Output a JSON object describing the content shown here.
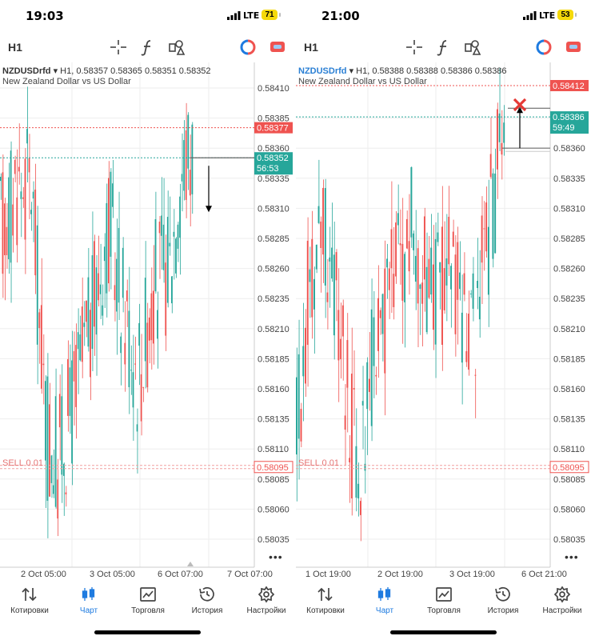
{
  "colors": {
    "bull": "#26a69a",
    "bear": "#ef5350",
    "accent": "#1e7be0",
    "grid": "#eeeeee"
  },
  "panels": [
    {
      "status": {
        "time": "19:03",
        "network": "LTE",
        "battery": "71"
      },
      "toolbar": {
        "timeframe": "H1",
        "icons": [
          "crosshair-icon",
          "indicators-icon",
          "objects-icon",
          "trading-icon",
          "chat-icon"
        ]
      },
      "chart": {
        "symbol": "NZDUSDrfd",
        "ohlc": "H1, 0.58357 0.58365 0.58351 0.58352",
        "description": "New Zealand Dollar vs US Dollar",
        "price_ticks": [
          "0.58410",
          "0.58385",
          "0.58360",
          "0.58335",
          "0.58310",
          "0.58285",
          "0.58260",
          "0.58235",
          "0.58210",
          "0.58185",
          "0.58160",
          "0.58135",
          "0.58110",
          "0.58085",
          "0.58060",
          "0.58035"
        ],
        "time_ticks": [
          "2 Oct 05:00",
          "3 Oct 05:00",
          "6 Oct 07:00",
          "7 Oct 07:00"
        ],
        "red_level": "0.58377",
        "bid_price": "0.58352",
        "countdown": "56:53",
        "sell_label": "SELL 0.01",
        "sell_price": "0.58095",
        "annotation": "down-arrow"
      }
    },
    {
      "status": {
        "time": "21:00",
        "network": "LTE",
        "battery": "53"
      },
      "toolbar": {
        "timeframe": "H1",
        "icons": [
          "crosshair-icon",
          "indicators-icon",
          "objects-icon",
          "trading-icon",
          "chat-icon"
        ]
      },
      "chart": {
        "symbol": "NZDUSDrfd",
        "ohlc": "H1, 0.58388 0.58388 0.58386 0.58386",
        "description": "New Zealand Dollar vs US Dollar",
        "price_ticks": [
          "0.58385",
          "0.58360",
          "0.58335",
          "0.58310",
          "0.58285",
          "0.58260",
          "0.58235",
          "0.58210",
          "0.58185",
          "0.58160",
          "0.58135",
          "0.58110",
          "0.58085",
          "0.58060",
          "0.58035"
        ],
        "time_ticks": [
          "1 Oct 19:00",
          "2 Oct 19:00",
          "3 Oct 19:00",
          "6 Oct 21:00"
        ],
        "red_level": "0.58412",
        "bid_price": "0.58386",
        "countdown": "59:49",
        "sell_label": "SELL 0.01",
        "sell_price": "0.58095",
        "annotation": "up-arrow-with-red-x"
      }
    }
  ],
  "tabs": [
    {
      "label": "Котировки",
      "icon": "quotes-icon"
    },
    {
      "label": "Чарт",
      "icon": "chart-candles-icon",
      "active": true
    },
    {
      "label": "Торговля",
      "icon": "trade-icon"
    },
    {
      "label": "История",
      "icon": "history-icon"
    },
    {
      "label": "Настройки",
      "icon": "settings-icon"
    }
  ]
}
